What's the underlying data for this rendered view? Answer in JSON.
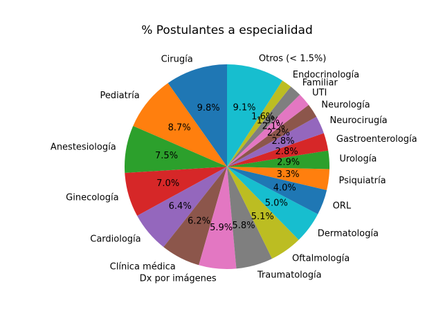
{
  "chart_data": {
    "type": "pie",
    "title": "% Postulantes a especialidad",
    "start_angle_deg": 90,
    "direction": "counterclockwise",
    "slices": [
      {
        "label": "Cirugía",
        "pct_label": "9.8%",
        "value": 9.8,
        "color": "#1f77b4"
      },
      {
        "label": "Pediatría",
        "pct_label": "8.7%",
        "value": 8.7,
        "color": "#ff7f0e"
      },
      {
        "label": "Anestesiología",
        "pct_label": "7.5%",
        "value": 7.5,
        "color": "#2ca02c"
      },
      {
        "label": "Ginecología",
        "pct_label": "7.0%",
        "value": 7.0,
        "color": "#d62728"
      },
      {
        "label": "Cardiología",
        "pct_label": "6.4%",
        "value": 6.4,
        "color": "#9467bd"
      },
      {
        "label": "Clínica médica",
        "pct_label": "6.2%",
        "value": 6.2,
        "color": "#8c564b"
      },
      {
        "label": "Dx por imágenes",
        "pct_label": "5.9%",
        "value": 5.9,
        "color": "#e377c2"
      },
      {
        "label": "Traumatología",
        "pct_label": "5.8%",
        "value": 5.8,
        "color": "#7f7f7f"
      },
      {
        "label": "Oftalmología",
        "pct_label": "5.1%",
        "value": 5.1,
        "color": "#bcbd22"
      },
      {
        "label": "Dermatología",
        "pct_label": "5.0%",
        "value": 5.0,
        "color": "#17becf"
      },
      {
        "label": "ORL",
        "pct_label": "4.0%",
        "value": 4.0,
        "color": "#1f77b4"
      },
      {
        "label": "Psiquiatría",
        "pct_label": "3.3%",
        "value": 3.3,
        "color": "#ff7f0e"
      },
      {
        "label": "Urología",
        "pct_label": "2.9%",
        "value": 2.9,
        "color": "#2ca02c"
      },
      {
        "label": "Gastroenterología",
        "pct_label": "2.8%",
        "value": 2.8,
        "color": "#d62728"
      },
      {
        "label": "Neurocirugía",
        "pct_label": "2.8%",
        "value": 2.8,
        "color": "#9467bd"
      },
      {
        "label": "Neurología",
        "pct_label": "2.2%",
        "value": 2.2,
        "color": "#8c564b"
      },
      {
        "label": "UTI",
        "pct_label": "2.1%",
        "value": 2.1,
        "color": "#e377c2"
      },
      {
        "label": "Familiar",
        "pct_label": "1.9%",
        "value": 1.9,
        "color": "#7f7f7f"
      },
      {
        "label": "Endocrinología",
        "pct_label": "1.6%",
        "value": 1.6,
        "color": "#bcbd22"
      },
      {
        "label": "Otros (< 1.5%)",
        "pct_label": "9.1%",
        "value": 9.1,
        "color": "#17becf"
      }
    ]
  }
}
